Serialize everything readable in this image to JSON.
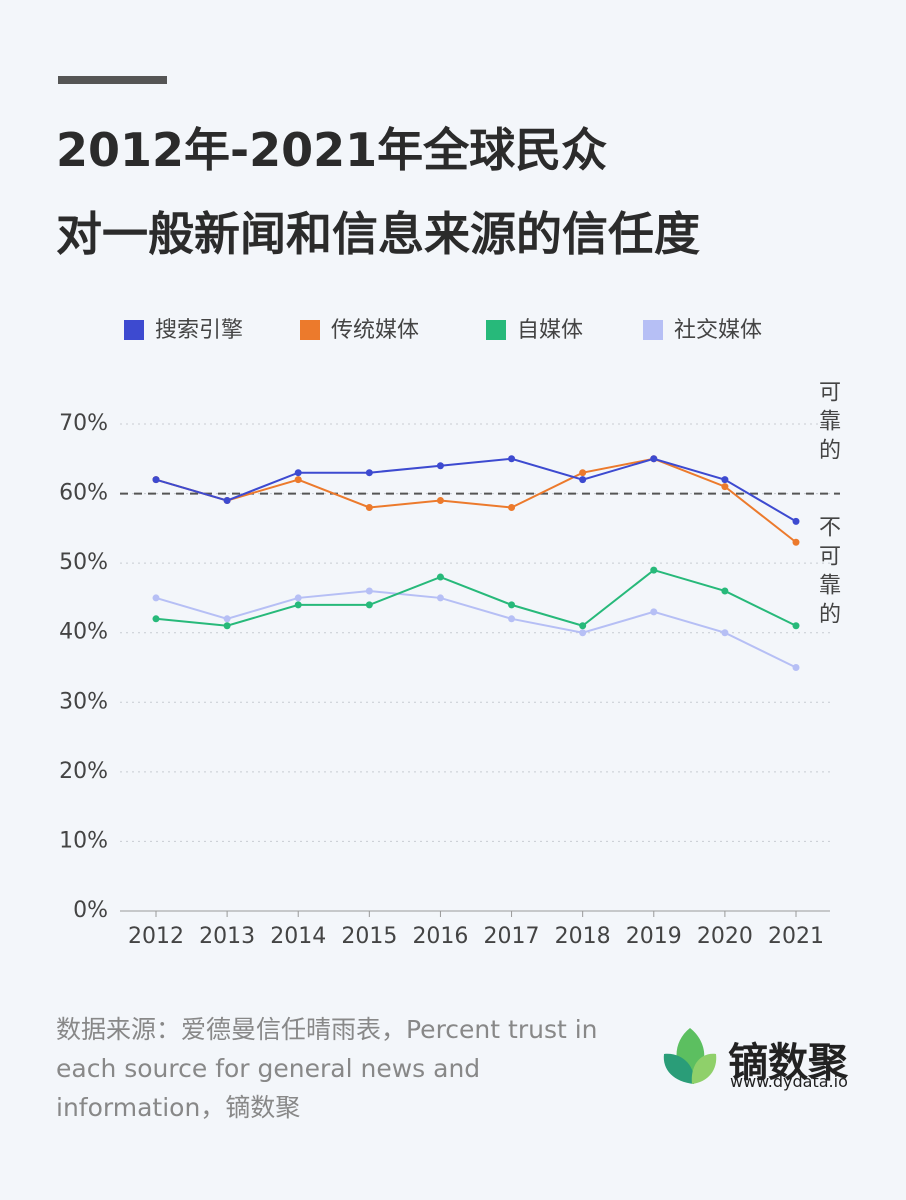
{
  "title": [
    "2012年-2021年全球民众",
    "对一般新闻和信息来源的信任度"
  ],
  "chart_data": {
    "type": "line",
    "categories": [
      "2012",
      "2013",
      "2014",
      "2015",
      "2016",
      "2017",
      "2018",
      "2019",
      "2020",
      "2021"
    ],
    "series": [
      {
        "name": "搜索引擎",
        "color": "#3d4ad0",
        "values": [
          62,
          59,
          63,
          63,
          64,
          65,
          62,
          65,
          62,
          56
        ]
      },
      {
        "name": "传统媒体",
        "color": "#ec7a2c",
        "values": [
          62,
          59,
          62,
          58,
          59,
          58,
          63,
          65,
          61,
          53
        ]
      },
      {
        "name": "自媒体",
        "color": "#27b97a",
        "values": [
          42,
          41,
          44,
          44,
          48,
          44,
          41,
          49,
          46,
          41
        ]
      },
      {
        "name": "社交媒体",
        "color": "#b6bff5",
        "values": [
          45,
          42,
          45,
          46,
          45,
          42,
          40,
          43,
          40,
          35
        ]
      }
    ],
    "ylim": [
      0,
      70
    ],
    "yticks": [
      {
        "value": 0,
        "label": "0%"
      },
      {
        "value": 10,
        "label": "10%"
      },
      {
        "value": 20,
        "label": "20%"
      },
      {
        "value": 30,
        "label": "30%"
      },
      {
        "value": 40,
        "label": "40%"
      },
      {
        "value": 50,
        "label": "50%"
      },
      {
        "value": 60,
        "label": "60%"
      },
      {
        "value": 70,
        "label": "70%"
      }
    ],
    "grid": true,
    "reference_line": 60,
    "annotations": [
      "可靠的",
      "不可靠的"
    ]
  },
  "source": "数据来源：爱德曼信任晴雨表，Percent trust in each source for general news and information，镝数聚",
  "logo": {
    "name": "镝数聚",
    "url": "www.dydata.io"
  }
}
